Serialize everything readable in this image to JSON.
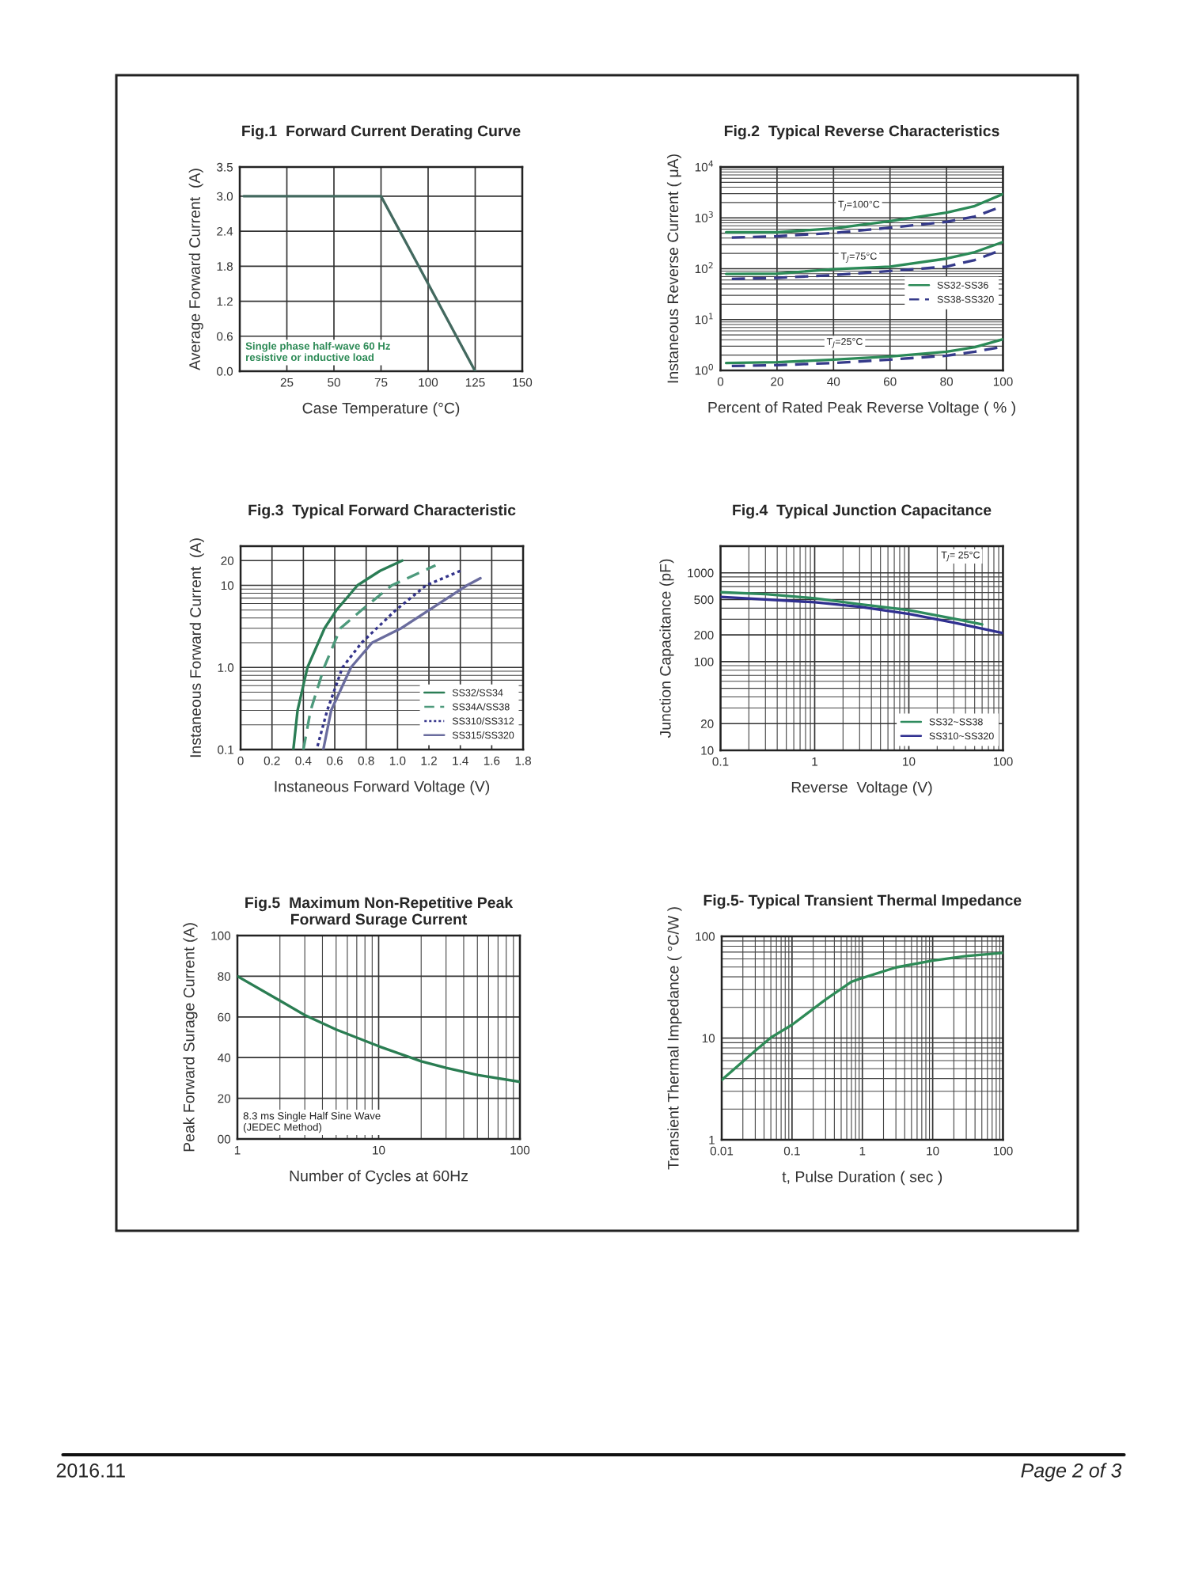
{
  "chart_data": [
    {
      "type": "line",
      "title": "Fig.1  Forward Current Derating Curve",
      "xlabel": "Case Temperature (°C)",
      "ylabel": "Average Forward Current  (A)",
      "xlim": [
        0,
        150
      ],
      "xticks": [
        25,
        50,
        75,
        100,
        125,
        150
      ],
      "ylim": [
        0,
        3.5
      ],
      "yticks": [
        {
          "value": 0,
          "label": "0.0"
        },
        {
          "value": 0.6,
          "label": "0.6"
        },
        {
          "value": 1.2,
          "label": "1.2"
        },
        {
          "value": 1.8,
          "label": "1.8"
        },
        {
          "value": 2.4,
          "label": "2.4"
        },
        {
          "value": 3.0,
          "label": "3.0"
        },
        {
          "value": 3.5,
          "label": "3.5"
        }
      ],
      "grid": true,
      "series": [
        {
          "color": "#43695f",
          "x": [
            2,
            75,
            125
          ],
          "values": [
            3.0,
            3.0,
            0
          ]
        }
      ],
      "annotations": [
        "Single phase half-wave 60 Hz\nresistive or inductive load"
      ]
    },
    {
      "type": "line",
      "title": "Fig.2  Typical Reverse Characteristics",
      "xlabel": "Percent of Rated Peak Reverse Voltage ( % )",
      "ylabel": "Instaneous Reverse Current ( μA)",
      "log": "y",
      "xlim": [
        0,
        100
      ],
      "xticks": [
        0,
        20,
        40,
        60,
        80,
        100
      ],
      "ylim": [
        1,
        10000
      ],
      "yticks": [
        {
          "value": 1,
          "label": "10$^{0}$"
        },
        {
          "value": 10,
          "label": "10$^{1}$"
        },
        {
          "value": 100,
          "label": "10$^{2}$"
        },
        {
          "value": 1000,
          "label": "10$^{3}$"
        },
        {
          "value": 10000,
          "label": "10$^{4}$"
        }
      ],
      "grid": true,
      "legend": "right",
      "series": [
        {
          "name": "SS32-SS36",
          "color": "#2b8a57",
          "line_style": "solid",
          "x": [
            2,
            20,
            40,
            60,
            80,
            90,
            100
          ],
          "values": [
            520,
            520,
            620,
            860,
            1270,
            1710,
            2940
          ]
        },
        {
          "name": "SS38-SS320",
          "color": "#353a8a",
          "line_style": "dashed",
          "x": [
            4,
            20,
            40,
            60,
            80,
            90,
            100
          ],
          "values": [
            410,
            435,
            505,
            640,
            835,
            1060,
            1710
          ]
        },
        {
          "color": "#2b8a57",
          "line_style": "solid",
          "x": [
            2,
            20,
            40,
            60,
            80,
            90,
            100
          ],
          "values": [
            79,
            80,
            98,
            110,
            158,
            212,
            335
          ]
        },
        {
          "color": "#353a8a",
          "line_style": "dashed",
          "x": [
            4,
            20,
            40,
            60,
            80,
            90,
            100
          ],
          "values": [
            63,
            66,
            75,
            90,
            110,
            148,
            240
          ]
        },
        {
          "color": "#2b8a57",
          "line_style": "solid",
          "x": [
            2,
            20,
            40,
            60,
            80,
            90,
            100
          ],
          "values": [
            1.4,
            1.45,
            1.63,
            1.88,
            2.33,
            2.86,
            4.1
          ]
        },
        {
          "color": "#353a8a",
          "line_style": "dashed",
          "x": [
            4,
            20,
            40,
            60,
            80,
            90,
            100
          ],
          "values": [
            1.22,
            1.27,
            1.4,
            1.63,
            1.95,
            2.33,
            2.93
          ]
        }
      ],
      "annotations": [
        "T$_{J}$=100°C",
        "T$_{J}$=75°C",
        "T$_{J}$=25°C"
      ]
    },
    {
      "type": "line",
      "title": "Fig.3  Typical Forward Characteristic",
      "xlabel": "Instaneous Forward Voltage (V)",
      "ylabel": "Instaneous Forward Current  (A)",
      "log": "y",
      "xlim": [
        0,
        1.8
      ],
      "xticks": [
        0,
        0.2,
        0.4,
        0.6,
        0.8,
        {
          "value": 1,
          "label": "1.0"
        },
        1.2,
        1.4,
        1.6,
        1.8
      ],
      "ylim": [
        0.1,
        30
      ],
      "yticks": [
        0.1,
        {
          "value": 1,
          "label": "1.0"
        },
        10,
        20
      ],
      "grid": true,
      "legend": "bottom right",
      "series": [
        {
          "name": "SS32/SS34",
          "color": "#2b7d55",
          "line_style": "solid",
          "x": [
            0.336,
            0.363,
            0.426,
            0.535,
            0.611,
            0.745,
            0.888,
            1.03
          ],
          "values": [
            0.1,
            0.3,
            1,
            3,
            5,
            10,
            15,
            20
          ]
        },
        {
          "name": "SS34A/SS38",
          "color": "#4d9a7c",
          "line_style": "dashed",
          "x": [
            0.4,
            0.446,
            0.532,
            0.636,
            0.771,
            0.964,
            1.242
          ],
          "values": [
            0.1,
            0.3,
            1,
            3,
            5,
            10,
            17.5
          ]
        },
        {
          "name": "SS310/SS312",
          "color": "#33338a",
          "line_style": "dotted",
          "x": [
            0.49,
            0.552,
            0.649,
            0.771,
            0.989,
            1.183,
            1.4
          ],
          "values": [
            0.11,
            0.3,
            1,
            2,
            5,
            10,
            15
          ]
        },
        {
          "name": "SS315/SS320",
          "color": "#6a6c9e",
          "line_style": "solid",
          "x": [
            0.527,
            0.577,
            0.703,
            0.838,
            1.023,
            1.443,
            1.528
          ],
          "values": [
            0.1,
            0.3,
            1,
            2,
            3,
            10,
            12.2
          ]
        }
      ]
    },
    {
      "type": "line",
      "title": "Fig.4  Typical Junction Capacitance",
      "xlabel": "Reverse  Voltage (V)",
      "ylabel": "Junction Capacitance (pF)",
      "log": "xy",
      "xlim": [
        0.1,
        100
      ],
      "xticks": [
        0.1,
        1,
        10,
        100
      ],
      "ylim": [
        10,
        2000
      ],
      "yticks": [
        10,
        20,
        100,
        200,
        500,
        1000
      ],
      "grid": true,
      "legend": "bottom right",
      "series": [
        {
          "name": "SS32~SS38",
          "color": "#2e8b5e",
          "line_style": "solid",
          "x": [
            0.1,
            0.3,
            1,
            3,
            10,
            30,
            60
          ],
          "values": [
            605,
            575,
            517,
            444,
            380,
            304,
            262
          ]
        },
        {
          "name": "SS310~SS320",
          "color": "#303090",
          "line_style": "solid",
          "x": [
            0.1,
            1,
            3,
            10,
            30,
            100
          ],
          "values": [
            535,
            466,
            415,
            345,
            275,
            209
          ]
        }
      ],
      "annotations": [
        "T$_{J}$= 25°C"
      ]
    },
    {
      "type": "line",
      "title": "Fig.5  Maximum Non-Repetitive Peak\nForward Surage Current",
      "xlabel": "Number of Cycles at 60Hz",
      "ylabel": "Peak Forward Surage Current (A)",
      "log": "x",
      "xlim": [
        1,
        100
      ],
      "xticks": [
        1,
        10,
        100
      ],
      "ylim": [
        0,
        100
      ],
      "yticks": [
        {
          "value": 0,
          "label": "00"
        },
        20,
        40,
        60,
        80,
        100
      ],
      "grid": true,
      "series": [
        {
          "color": "#2a7d52",
          "x": [
            1,
            2,
            3,
            5,
            10,
            20,
            30,
            50,
            100
          ],
          "values": [
            80,
            68,
            60.9,
            53.8,
            45.6,
            38.2,
            35,
            31.5,
            28.1
          ]
        }
      ],
      "annotations": [
        "8.3 ms Single Half Sine Wave\n(JEDEC Method)"
      ]
    },
    {
      "type": "line",
      "title": "Fig.5- Typical Transient Thermal Impedance",
      "xlabel": "t, Pulse Duration ( sec )",
      "ylabel": "Transient Thermal Impedance ( °C/W )",
      "log": "xy",
      "xlim": [
        0.01,
        100
      ],
      "xticks": [
        0.01,
        0.1,
        1,
        10,
        100
      ],
      "ylim": [
        1,
        100
      ],
      "yticks": [
        1,
        10,
        100
      ],
      "grid": true,
      "series": [
        {
          "color": "#2e8b57",
          "x": [
            0.01,
            0.03,
            0.05,
            0.1,
            0.3,
            0.7,
            1,
            3,
            10,
            30,
            100
          ],
          "values": [
            3.87,
            7.5,
            10.1,
            13.5,
            23.9,
            35.8,
            39,
            49.5,
            57.8,
            64,
            68.7
          ]
        }
      ]
    },
    {
      "type": "other",
      "annotations": [
        "2016.11",
        "Page 2 of 3"
      ]
    }
  ]
}
